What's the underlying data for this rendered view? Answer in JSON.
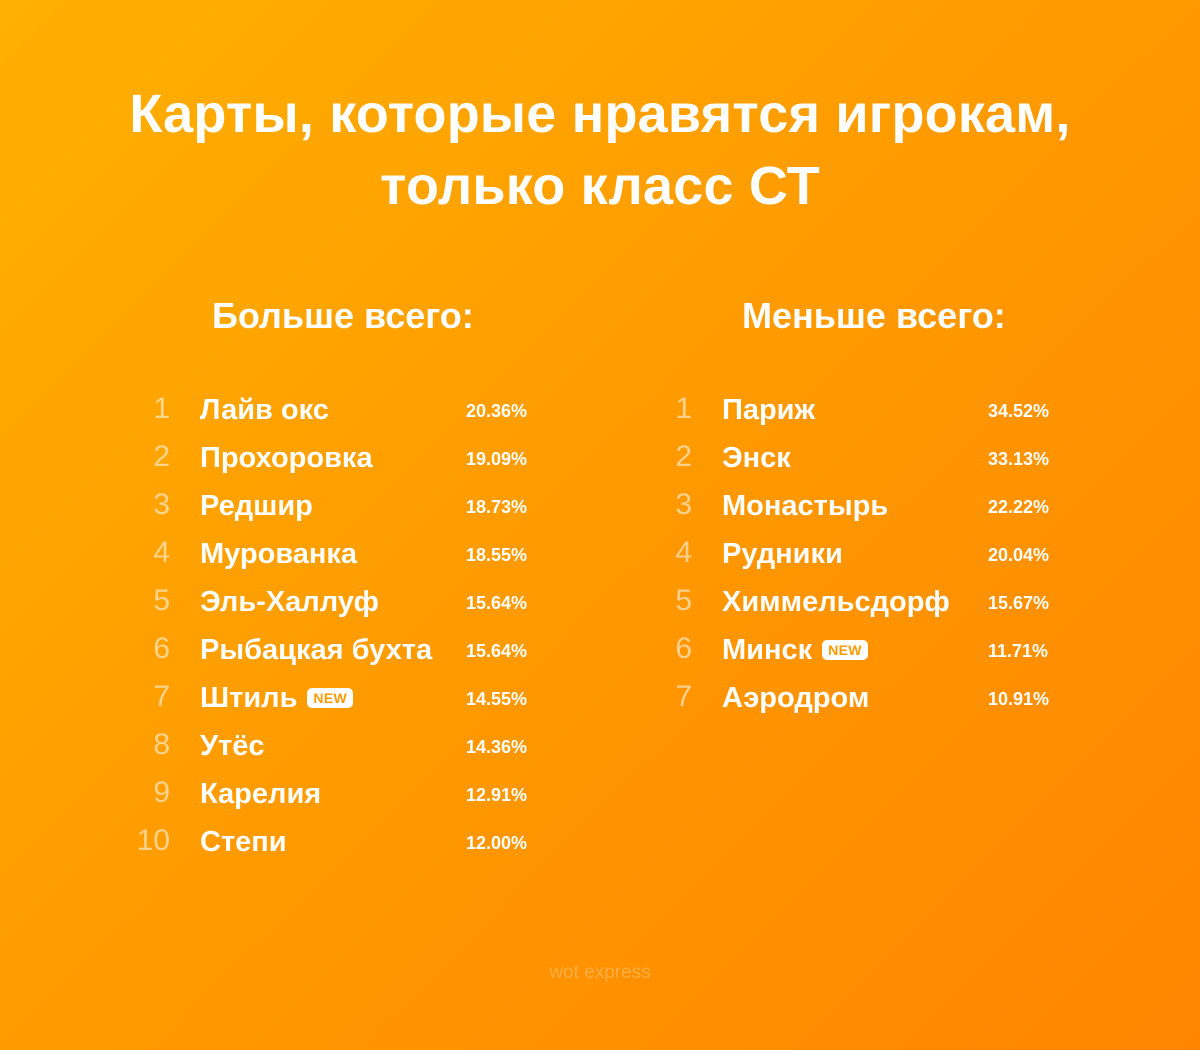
{
  "title": {
    "line1": "Карты, которые нравятся игрокам,",
    "line2": "только класс СТ"
  },
  "left": {
    "heading": "Больше всего:",
    "items": [
      {
        "rank": "1",
        "name": "Лайв окс",
        "percent": "20.36%"
      },
      {
        "rank": "2",
        "name": "Прохоровка",
        "percent": "19.09%"
      },
      {
        "rank": "3",
        "name": "Редшир",
        "percent": "18.73%"
      },
      {
        "rank": "4",
        "name": "Мурованка",
        "percent": "18.55%"
      },
      {
        "rank": "5",
        "name": "Эль-Халлуф",
        "percent": "15.64%"
      },
      {
        "rank": "6",
        "name": "Рыбацкая бухта",
        "percent": "15.64%"
      },
      {
        "rank": "7",
        "name": "Штиль",
        "badge": "NEW",
        "percent": "14.55%"
      },
      {
        "rank": "8",
        "name": "Утёс",
        "percent": "14.36%"
      },
      {
        "rank": "9",
        "name": "Карелия",
        "percent": "12.91%"
      },
      {
        "rank": "10",
        "name": "Степи",
        "percent": "12.00%"
      }
    ]
  },
  "right": {
    "heading": "Меньше всего:",
    "items": [
      {
        "rank": "1",
        "name": "Париж",
        "percent": "34.52%"
      },
      {
        "rank": "2",
        "name": "Энск",
        "percent": "33.13%"
      },
      {
        "rank": "3",
        "name": "Монастырь",
        "percent": "22.22%"
      },
      {
        "rank": "4",
        "name": "Рудники",
        "percent": "20.04%"
      },
      {
        "rank": "5",
        "name": "Химмельсдорф",
        "percent": "15.67%"
      },
      {
        "rank": "6",
        "name": "Минск",
        "badge": "NEW",
        "percent": "11.71%"
      },
      {
        "rank": "7",
        "name": "Аэродром",
        "percent": "10.91%"
      }
    ]
  },
  "watermark": "wot express",
  "colors": {
    "background_start": "#ffb000",
    "background_end": "#ff8500",
    "text": "#ffffff",
    "badge_text": "#ff9a00"
  }
}
